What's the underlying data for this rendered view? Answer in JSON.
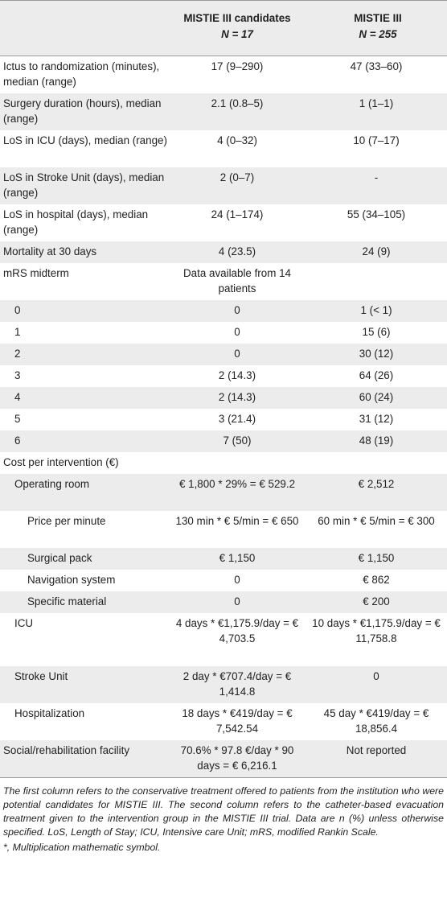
{
  "header": {
    "col1_title": "MISTIE III candidates",
    "col1_n": "N = 17",
    "col2_title": "MISTIE III",
    "col2_n": "N = 255"
  },
  "rows": [
    {
      "label": "Ictus to randomization (minutes), median (range)",
      "v1": "17 (9–290)",
      "v2": "47 (33–60)",
      "indent": 0,
      "shaded": false,
      "h": 46
    },
    {
      "label": "Surgery duration (hours), median (range)",
      "v1": "2.1 (0.8–5)",
      "v2": "1 (1–1)",
      "indent": 0,
      "shaded": true,
      "h": 46
    },
    {
      "label": "LoS in ICU (days), median (range)",
      "v1": "4 (0–32)",
      "v2": "10 (7–17)",
      "indent": 0,
      "shaded": false,
      "h": 46
    },
    {
      "label": "LoS in Stroke Unit (days), median (range)",
      "v1": "2 (0–7)",
      "v2": "-",
      "indent": 0,
      "shaded": true,
      "h": 46
    },
    {
      "label": "LoS in hospital (days), median (range)",
      "v1": "24 (1–174)",
      "v2": "55 (34–105)",
      "indent": 0,
      "shaded": false,
      "h": 46
    },
    {
      "label": "Mortality at 30 days",
      "v1": "4 (23.5)",
      "v2": "24 (9)",
      "indent": 0,
      "shaded": true,
      "h": 27
    },
    {
      "label": "mRS midterm",
      "v1": "Data available from 14 patients",
      "v2": "",
      "indent": 0,
      "shaded": false,
      "h": 46
    },
    {
      "label": "0",
      "v1": "0",
      "v2": "1 (< 1)",
      "indent": 1,
      "shaded": true,
      "h": 27
    },
    {
      "label": "1",
      "v1": "0",
      "v2": "15 (6)",
      "indent": 1,
      "shaded": false,
      "h": 27
    },
    {
      "label": "2",
      "v1": "0",
      "v2": "30 (12)",
      "indent": 1,
      "shaded": true,
      "h": 27
    },
    {
      "label": "3",
      "v1": "2 (14.3)",
      "v2": "64 (26)",
      "indent": 1,
      "shaded": false,
      "h": 27
    },
    {
      "label": "4",
      "v1": "2 (14.3)",
      "v2": "60 (24)",
      "indent": 1,
      "shaded": true,
      "h": 27
    },
    {
      "label": "5",
      "v1": "3 (21.4)",
      "v2": "31 (12)",
      "indent": 1,
      "shaded": false,
      "h": 27
    },
    {
      "label": "6",
      "v1": "7 (50)",
      "v2": "48 (19)",
      "indent": 1,
      "shaded": true,
      "h": 27
    },
    {
      "label": "Cost per intervention (€)",
      "v1": "",
      "v2": "",
      "indent": 0,
      "shaded": false,
      "h": 27
    },
    {
      "label": "Operating room",
      "v1": "€ 1,800 * 29% = € 529.2",
      "v2": "€ 2,512",
      "indent": 1,
      "shaded": true,
      "h": 46
    },
    {
      "label": "Price per minute",
      "v1": "130 min * € 5/min = € 650",
      "v2": "60 min * € 5/min = € 300",
      "indent": 2,
      "shaded": false,
      "h": 46
    },
    {
      "label": "Surgical pack",
      "v1": "€ 1,150",
      "v2": "€ 1,150",
      "indent": 2,
      "shaded": true,
      "h": 27
    },
    {
      "label": "Navigation system",
      "v1": "0",
      "v2": "€ 862",
      "indent": 2,
      "shaded": false,
      "h": 27
    },
    {
      "label": "Specific material",
      "v1": "0",
      "v2": "€ 200",
      "indent": 2,
      "shaded": true,
      "h": 27
    },
    {
      "label": "ICU",
      "v1": "4 days * €1,175.9/day = € 4,703.5",
      "v2": "10 days * €1,175.9/day = € 11,758.8",
      "indent": 1,
      "shaded": false,
      "h": 66
    },
    {
      "label": "Stroke Unit",
      "v1": "2 day * €707.4/day = € 1,414.8",
      "v2": "0",
      "indent": 1,
      "shaded": true,
      "h": 46
    },
    {
      "label": "Hospitalization",
      "v1": "18 days * €419/day = € 7,542.54",
      "v2": "45 day * €419/day = € 18,856.4",
      "indent": 1,
      "shaded": false,
      "h": 46
    },
    {
      "label": "Social/rehabilitation facility",
      "v1": "70.6% * 97.8 €/day * 90 days = € 6,216.1",
      "v2": "Not reported",
      "indent": 0,
      "shaded": true,
      "h": 46
    }
  ],
  "footnotes": {
    "main": "The first column refers to the conservative treatment offered to patients from the institution who were potential candidates for MISTIE III. The second column refers to the catheter-based evacuation treatment given to the intervention group in the MISTIE III trial. Data are n (%) unless otherwise specified. LoS, Length of Stay; ICU, Intensive care Unit; mRS, modified Rankin Scale.",
    "symbol": "*, Multiplication mathematic symbol."
  }
}
